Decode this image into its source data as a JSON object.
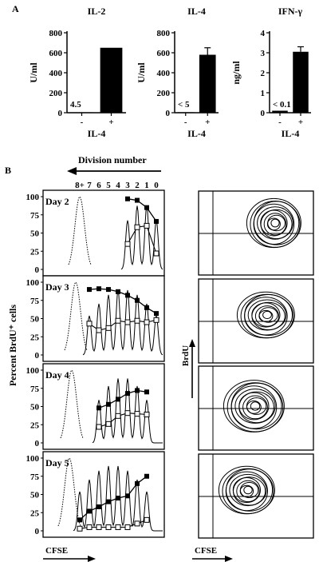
{
  "figure": {
    "panel_a_label": "A",
    "panel_b_label": "B",
    "division_header": "Division number",
    "division_ticks": [
      "8+",
      "7",
      "6",
      "5",
      "4",
      "3",
      "2",
      "1",
      "0"
    ],
    "ylabel_percent": "Percent BrdU⁺ cells",
    "brdu_label": "BrdU",
    "cfse_label_left": "CFSE",
    "cfse_label_right": "CFSE"
  },
  "chart_data": [
    {
      "type": "bar",
      "title": "IL-2",
      "ylabel": "U/ml",
      "xlabel": "IL-4",
      "categories": [
        "-",
        "+"
      ],
      "values": [
        4.5,
        650
      ],
      "error": [
        0,
        0
      ],
      "ylim": [
        0,
        800
      ],
      "yticks": [
        "0",
        "200",
        "400",
        "600",
        "800"
      ],
      "annotation": "4.5"
    },
    {
      "type": "bar",
      "title": "IL-4",
      "ylabel": "U/ml",
      "xlabel": "IL-4",
      "categories": [
        "-",
        "+"
      ],
      "values": [
        5,
        580
      ],
      "error": [
        0,
        70
      ],
      "ylim": [
        0,
        800
      ],
      "yticks": [
        "0",
        "200",
        "400",
        "600",
        "800"
      ],
      "annotation": "< 5"
    },
    {
      "type": "bar",
      "title": "IFN-γ",
      "ylabel": "ng/ml",
      "xlabel": "IL-4",
      "categories": [
        "-",
        "+"
      ],
      "values": [
        0.1,
        3.05
      ],
      "error": [
        0,
        0.25
      ],
      "ylim": [
        0,
        4
      ],
      "yticks": [
        "0",
        "1",
        "2",
        "3",
        "4"
      ],
      "annotation": "< 0.1"
    },
    {
      "type": "line",
      "label": "Day 2",
      "ylim": [
        0,
        100
      ],
      "yticks": [
        "0",
        "25",
        "50",
        "75",
        "100"
      ],
      "division_x": [
        0,
        1,
        2,
        3
      ],
      "filled_y": [
        66,
        85,
        95,
        97
      ],
      "open_y": [
        22,
        60,
        58,
        35
      ]
    },
    {
      "type": "line",
      "label": "Day 3",
      "ylim": [
        0,
        100
      ],
      "yticks": [
        "0",
        "25",
        "50",
        "75",
        "100"
      ],
      "division_x": [
        0,
        1,
        2,
        3,
        4,
        5,
        6,
        7
      ],
      "filled_y": [
        57,
        65,
        75,
        82,
        87,
        90,
        91,
        90
      ],
      "open_y": [
        48,
        45,
        47,
        45,
        47,
        37,
        34,
        43
      ]
    },
    {
      "type": "line",
      "label": "Day 4",
      "ylim": [
        0,
        100
      ],
      "yticks": [
        "0",
        "25",
        "50",
        "75",
        "100"
      ],
      "division_x": [
        1,
        2,
        3,
        4,
        5,
        6
      ],
      "filled_y": [
        70,
        72,
        68,
        60,
        53,
        48
      ],
      "open_y": [
        39,
        40,
        41,
        37,
        26,
        22
      ]
    },
    {
      "type": "line",
      "label": "Day 5",
      "ylim": [
        0,
        100
      ],
      "yticks": [
        "0",
        "25",
        "50",
        "75",
        "100"
      ],
      "division_x": [
        1,
        2,
        3,
        4,
        5,
        6,
        7,
        8
      ],
      "filled_y": [
        75,
        65,
        48,
        45,
        40,
        33,
        27,
        15
      ],
      "open_y": [
        15,
        10,
        5,
        5,
        5,
        5,
        5,
        3
      ]
    }
  ]
}
